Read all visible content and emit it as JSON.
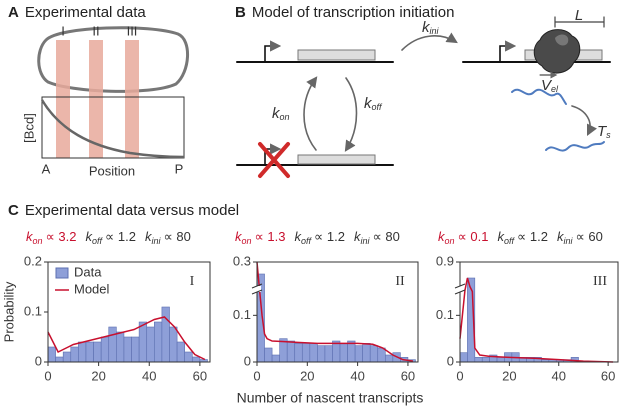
{
  "panel_a": {
    "letter": "A",
    "title": "Experimental data",
    "regions": [
      "I",
      "II",
      "III"
    ],
    "y_label": "[Bcd]",
    "x_start": "A",
    "x_label": "Position",
    "x_end": "P"
  },
  "panel_b": {
    "letter": "B",
    "title": "Model of transcription initiation",
    "k_ini": {
      "k": "k",
      "sub": "ini"
    },
    "length": "L",
    "v_el": {
      "k": "V",
      "sub": "el"
    },
    "t_s": {
      "k": "T",
      "sub": "s"
    },
    "k_on": {
      "k": "k",
      "sub": "on"
    },
    "k_off": {
      "k": "k",
      "sub": "off"
    }
  },
  "panel_c": {
    "letter": "C",
    "title": "Experimental data versus model",
    "y_label": "Probability",
    "x_label": "Number of nascent transcripts"
  },
  "chart_data": [
    {
      "type": "histogram",
      "annotation": "I",
      "legend": "upper left",
      "params": [
        {
          "k": "k",
          "sub": "on",
          "rel": "∝ 3.2",
          "color": "#c8102e"
        },
        {
          "k": "k",
          "sub": "off",
          "rel": "∝ 1.2"
        },
        {
          "k": "k",
          "sub": "ini",
          "rel": "∝ 80"
        }
      ],
      "bins": [
        0,
        3,
        6,
        9,
        12,
        15,
        18,
        21,
        24,
        27,
        30,
        33,
        36,
        39,
        42,
        45,
        48,
        51,
        54,
        57,
        60,
        63
      ],
      "xlim": [
        0,
        64
      ],
      "xticks": [
        0,
        20,
        40,
        60
      ],
      "ylim": [
        0,
        0.2
      ],
      "yticks": [
        0,
        0.1,
        0.2
      ],
      "series": [
        {
          "name": "Data",
          "color": "#8e9fd8",
          "values": [
            0.03,
            0.01,
            0.02,
            0.03,
            0.04,
            0.04,
            0.04,
            0.05,
            0.07,
            0.06,
            0.05,
            0.05,
            0.08,
            0.07,
            0.08,
            0.11,
            0.07,
            0.04,
            0.02,
            0.01,
            0.005
          ]
        },
        {
          "name": "Model",
          "color": "#c8102e",
          "x": [
            0,
            2,
            4,
            6,
            8,
            10,
            14,
            18,
            22,
            26,
            30,
            34,
            38,
            42,
            46,
            50,
            54,
            58,
            62
          ],
          "values": [
            0.06,
            0.04,
            0.02,
            0.025,
            0.03,
            0.035,
            0.04,
            0.045,
            0.05,
            0.055,
            0.06,
            0.065,
            0.075,
            0.085,
            0.09,
            0.07,
            0.04,
            0.015,
            0.005
          ]
        }
      ]
    },
    {
      "type": "histogram",
      "annotation": "II",
      "params": [
        {
          "k": "k",
          "sub": "on",
          "rel": "∝ 1.3",
          "color": "#c8102e"
        },
        {
          "k": "k",
          "sub": "off",
          "rel": "∝ 1.2"
        },
        {
          "k": "k",
          "sub": "ini",
          "rel": "∝ 80"
        }
      ],
      "bins": [
        0,
        3,
        6,
        9,
        12,
        15,
        18,
        21,
        24,
        27,
        30,
        33,
        36,
        39,
        42,
        45,
        48,
        51,
        54,
        57,
        60,
        63
      ],
      "xlim": [
        0,
        64
      ],
      "xticks": [
        0,
        20,
        40,
        60
      ],
      "ylim": [
        0,
        0.3
      ],
      "yticks": [
        0,
        0.1,
        0.3
      ],
      "ybreak": [
        0.15,
        0.28
      ],
      "series": [
        {
          "color": "#8e9fd8",
          "values": [
            0.29,
            0.03,
            0.015,
            0.05,
            0.045,
            0.04,
            0.04,
            0.04,
            0.035,
            0.035,
            0.045,
            0.04,
            0.045,
            0.035,
            0.04,
            0.035,
            0.03,
            0.015,
            0.02,
            0.01,
            0.005
          ]
        },
        {
          "color": "#c8102e",
          "x": [
            0,
            1,
            2,
            3,
            4,
            6,
            10,
            16,
            24,
            32,
            40,
            46,
            50,
            54,
            58,
            62
          ],
          "values": [
            0.3,
            0.2,
            0.1,
            0.06,
            0.05,
            0.045,
            0.044,
            0.042,
            0.04,
            0.04,
            0.04,
            0.038,
            0.03,
            0.015,
            0.005,
            0.002
          ]
        }
      ]
    },
    {
      "type": "histogram",
      "annotation": "III",
      "params": [
        {
          "k": "k",
          "sub": "on",
          "rel": "∝ 0.1",
          "color": "#c8102e"
        },
        {
          "k": "k",
          "sub": "off",
          "rel": "∝ 1.2"
        },
        {
          "k": "k",
          "sub": "ini",
          "rel": "∝ 60"
        }
      ],
      "bins": [
        0,
        3,
        6,
        9,
        12,
        15,
        18,
        21,
        24,
        27,
        30,
        33,
        36,
        39,
        42,
        45,
        48,
        51,
        54,
        57,
        60,
        63
      ],
      "xlim": [
        0,
        64
      ],
      "xticks": [
        0,
        20,
        40,
        60
      ],
      "ylim": [
        0,
        0.9
      ],
      "yticks": [
        0,
        0.1,
        0.9
      ],
      "ybreak": [
        0.15,
        0.75
      ],
      "series": [
        {
          "color": "#8e9fd8",
          "values": [
            0.02,
            0.8,
            0.01,
            0.01,
            0.015,
            0.01,
            0.02,
            0.02,
            0.01,
            0.01,
            0.01,
            0.005,
            0.005,
            0.005,
            0.005,
            0.01,
            0,
            0,
            0,
            0,
            0
          ]
        },
        {
          "color": "#c8102e",
          "x": [
            0,
            2,
            3,
            4,
            5,
            6,
            8,
            12,
            20,
            30,
            40,
            50,
            62
          ],
          "values": [
            0.05,
            0.3,
            0.8,
            0.7,
            0.2,
            0.03,
            0.015,
            0.012,
            0.01,
            0.008,
            0.005,
            0.002,
            0
          ]
        }
      ]
    }
  ]
}
